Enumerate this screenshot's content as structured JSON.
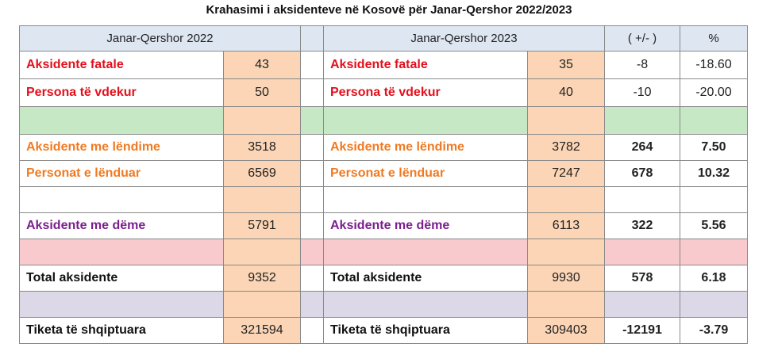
{
  "title": "Krahasimi i aksidenteve në Kosovë për Janar-Qershor 2022/2023",
  "header": {
    "period_2022": "Janar-Qershor 2022",
    "period_2023": "Janar-Qershor  2023",
    "diff": "( +/- )",
    "percent": "%"
  },
  "rows": [
    {
      "label_2022": "Aksidente fatale",
      "v2022": "43",
      "label_2023": "Aksidente fatale",
      "v2023": "35",
      "diff": "-8",
      "pct": "-18.60"
    },
    {
      "label_2022": "Persona të vdekur",
      "v2022": "50",
      "label_2023": "Persona të vdekur",
      "v2023": "40",
      "diff": "-10",
      "pct": "-20.00"
    },
    {
      "label_2022": "Aksidente me lëndime",
      "v2022": "3518",
      "label_2023": "Aksidente me lëndime",
      "v2023": "3782",
      "diff": "264",
      "pct": "7.50"
    },
    {
      "label_2022": "Personat e lënduar",
      "v2022": "6569",
      "label_2023": "Personat e lënduar",
      "v2023": "7247",
      "diff": "678",
      "pct": "10.32"
    },
    {
      "label_2022": "Aksidente me dëme",
      "v2022": "5791",
      "label_2023": "Aksidente me dëme",
      "v2023": "6113",
      "diff": "322",
      "pct": "5.56"
    },
    {
      "label_2022": "Total aksidente",
      "v2022": "9352",
      "label_2023": "Total aksidente",
      "v2023": "9930",
      "diff": "578",
      "pct": "6.18"
    },
    {
      "label_2022": "Tiketa të shqiptuara",
      "v2022": "321594",
      "label_2023": "Tiketa të shqiptuara",
      "v2023": "309403",
      "diff": "-12191",
      "pct": "-3.79"
    }
  ],
  "colors": {
    "fatal": "#e3101c",
    "injury": "#f07a22",
    "damage": "#7a1f8e",
    "value_cell": "#fbd5b5",
    "header": "#dde6f1",
    "band_green": "#c7e8c5",
    "band_pink": "#f8c9cd",
    "band_lavender": "#dcd8e8"
  }
}
